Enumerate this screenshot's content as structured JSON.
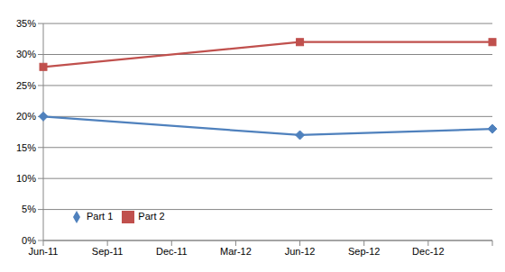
{
  "chart_data": {
    "type": "line",
    "categories": [
      "Jun-11",
      "Sep-11",
      "Dec-11",
      "Mar-12",
      "Jun-12",
      "Sep-12",
      "Dec-12",
      null
    ],
    "series": [
      {
        "name": "Part 1",
        "color": "#4f81bd",
        "marker": "diamond",
        "values": [
          20,
          null,
          null,
          null,
          17,
          null,
          null,
          18
        ]
      },
      {
        "name": "Part 2",
        "color": "#c0504d",
        "marker": "square",
        "values": [
          28,
          null,
          null,
          null,
          32,
          null,
          null,
          32
        ]
      }
    ],
    "ylim": [
      0,
      35
    ],
    "yticks": [
      {
        "value": 0,
        "label": "0%"
      },
      {
        "value": 5,
        "label": "5%"
      },
      {
        "value": 10,
        "label": "10%"
      },
      {
        "value": 15,
        "label": "15%"
      },
      {
        "value": 20,
        "label": "20%"
      },
      {
        "value": 25,
        "label": "25%"
      },
      {
        "value": 30,
        "label": "30%"
      },
      {
        "value": 35,
        "label": "35%"
      }
    ],
    "grid": true,
    "legend": "lower left"
  }
}
